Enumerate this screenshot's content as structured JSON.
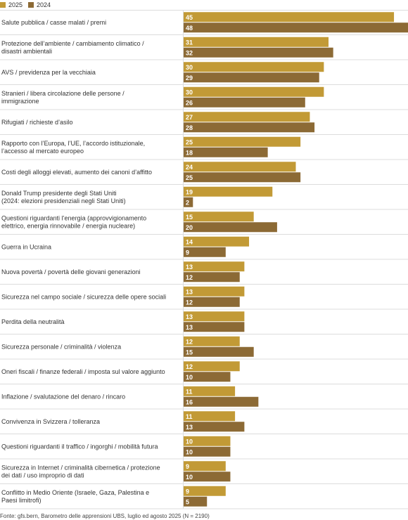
{
  "legend": {
    "label_2025": "2025",
    "label_2024": "2024"
  },
  "colors": {
    "c2025": "#c29a36",
    "c2024": "#8c6a35",
    "divider": "#dcdcdc",
    "bar_label": "#ffffff"
  },
  "source": "Fonte: gfs.bern, Barometro delle apprensioni UBS, luglio ed agosto 2025 (N = 2190)",
  "chart_data": {
    "type": "bar",
    "orientation": "horizontal",
    "grid": false,
    "legend_position": "top-left",
    "xlim": [
      0,
      48
    ],
    "series": [
      {
        "name": "2025",
        "values": [
          45,
          31,
          30,
          30,
          27,
          25,
          24,
          19,
          15,
          14,
          13,
          13,
          13,
          12,
          12,
          11,
          11,
          10,
          9,
          9
        ]
      },
      {
        "name": "2024",
        "values": [
          48,
          32,
          29,
          26,
          28,
          18,
          25,
          2,
          20,
          9,
          12,
          12,
          13,
          15,
          10,
          16,
          13,
          10,
          10,
          5
        ]
      }
    ],
    "categories": [
      [
        "Salute pubblica / casse malati / premi"
      ],
      [
        "Protezione dell’ambiente / cambiamento climatico /",
        "disastri ambientali"
      ],
      [
        "AVS / previdenza per la vecchiaia"
      ],
      [
        "Stranieri / libera circolazione delle persone /",
        "immigrazione"
      ],
      [
        "Rifugiati / richieste d’asilo"
      ],
      [
        "Rapporto con l’Europa, l’UE, l’accordo istituzionale,",
        "l’accesso al mercato europeo"
      ],
      [
        "Costi degli alloggi elevati, aumento dei canoni d’affitto"
      ],
      [
        "Donald Trump presidente degli Stati Uniti",
        "(2024: elezioni presidenziali negli Stati Uniti)"
      ],
      [
        "Questioni riguardanti l’energia (approvvigionamento",
        "elettrico, energia rinnovabile / energia nucleare)"
      ],
      [
        "Guerra in Ucraina"
      ],
      [
        "Nuova povertà / povertà delle giovani generazioni"
      ],
      [
        "Sicurezza nel campo sociale / sicurezza delle opere sociali"
      ],
      [
        "Perdita della neutralità"
      ],
      [
        "Sicurezza personale / criminalità / violenza"
      ],
      [
        "Oneri fiscali / finanze federali / imposta sul valore aggiunto"
      ],
      [
        "Inflazione / svalutazione del denaro / rincaro"
      ],
      [
        "Convivenza in Svizzera / tolleranza"
      ],
      [
        "Questioni riguardanti il traffico / ingorghi / mobilità futura"
      ],
      [
        "Sicurezza in Internet / criminalità cibernetica / protezione",
        "dei dati / uso improprio di dati"
      ],
      [
        "Conflitto in Medio Oriente (Israele, Gaza, Palestina e",
        "Paesi limitrofi)"
      ]
    ]
  }
}
